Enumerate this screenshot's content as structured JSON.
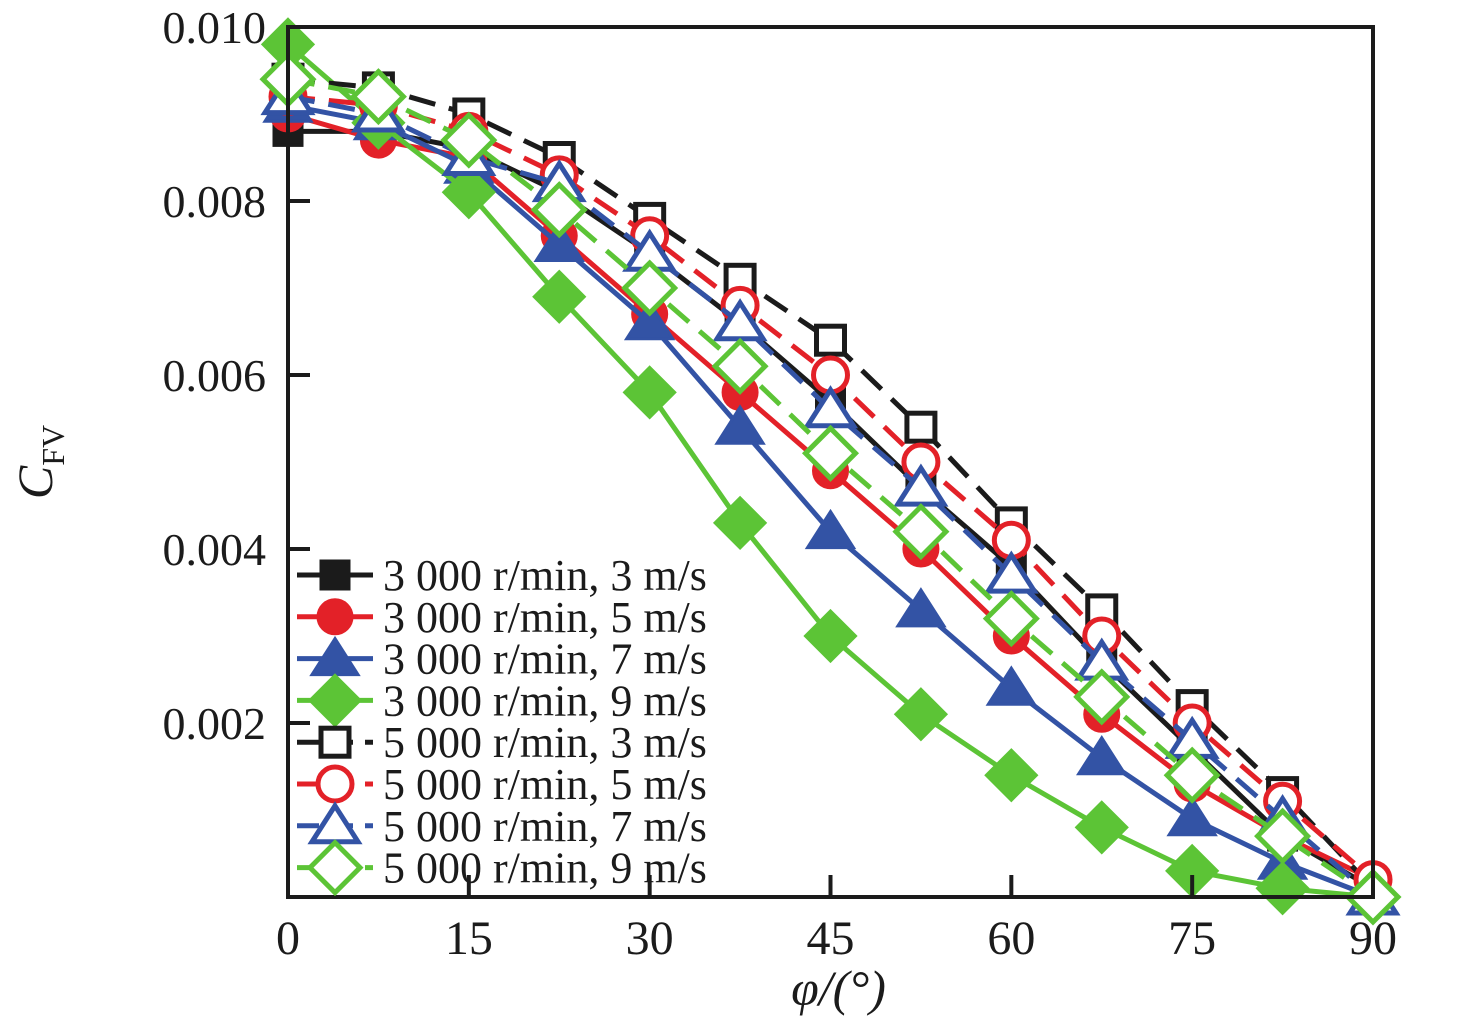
{
  "figure_title": "",
  "chart_data": {
    "type": "line",
    "title": "",
    "xlabel": "φ/(°)",
    "ylabel_main": "C",
    "ylabel_sub": "FV",
    "xlim": [
      0,
      90
    ],
    "ylim": [
      0,
      0.01
    ],
    "grid": false,
    "legend_position": "lower-left-inside",
    "x_tick_values": [
      0,
      15,
      30,
      45,
      60,
      75,
      90
    ],
    "x_tick_labels": [
      "0",
      "15",
      "30",
      "45",
      "60",
      "75",
      "90"
    ],
    "y_tick_values": [
      0.002,
      0.004,
      0.006,
      0.008,
      0.01
    ],
    "y_tick_labels": [
      "0.002",
      "0.004",
      "0.006",
      "0.008",
      "0.010"
    ],
    "x": [
      0,
      7.5,
      15,
      22.5,
      30,
      37.5,
      45,
      52.5,
      60,
      67.5,
      75,
      82.5,
      90
    ],
    "series": [
      {
        "label": "3 000 r/min, 3 m/s",
        "color": "#1b1b1b",
        "marker": "square",
        "filled": true,
        "line": "solid",
        "values": [
          0.0088,
          0.0088,
          0.0086,
          0.0081,
          0.0074,
          0.0066,
          0.0057,
          0.0047,
          0.0038,
          0.0027,
          0.0017,
          0.0007,
          0.0001
        ]
      },
      {
        "label": "3 000 r/min, 5 m/s",
        "color": "#e32128",
        "marker": "circle",
        "filled": true,
        "line": "solid",
        "values": [
          0.009,
          0.0087,
          0.0085,
          0.0076,
          0.0067,
          0.0058,
          0.0049,
          0.004,
          0.003,
          0.0021,
          0.0013,
          0.0007,
          0.0002
        ]
      },
      {
        "label": "3 000 r/min, 7 m/s",
        "color": "#3353a5",
        "marker": "triangle",
        "filled": true,
        "line": "solid",
        "values": [
          0.0091,
          0.0089,
          0.0084,
          0.0075,
          0.0066,
          0.0054,
          0.0042,
          0.0033,
          0.0024,
          0.0016,
          0.0009,
          0.0004,
          0.0
        ]
      },
      {
        "label": "3 000 r/min, 9 m/s",
        "color": "#5cc436",
        "marker": "diamond",
        "filled": true,
        "line": "solid",
        "values": [
          0.0098,
          0.0089,
          0.0081,
          0.0069,
          0.0058,
          0.0043,
          0.003,
          0.0021,
          0.0014,
          0.0008,
          0.0003,
          0.0001,
          0.0
        ]
      },
      {
        "label": "5 000 r/min, 3 m/s",
        "color": "#1b1b1b",
        "marker": "square",
        "filled": false,
        "line": "dashed",
        "values": [
          0.0094,
          0.0093,
          0.009,
          0.0085,
          0.0078,
          0.0071,
          0.0064,
          0.0054,
          0.0043,
          0.0033,
          0.0022,
          0.0012,
          0.0001
        ]
      },
      {
        "label": "5 000 r/min, 5 m/s",
        "color": "#e32128",
        "marker": "circle",
        "filled": false,
        "line": "dashed",
        "values": [
          0.0092,
          0.0091,
          0.0088,
          0.0083,
          0.0076,
          0.0068,
          0.006,
          0.005,
          0.0041,
          0.003,
          0.002,
          0.0011,
          0.0002
        ]
      },
      {
        "label": "5 000 r/min, 7 m/s",
        "color": "#3353a5",
        "marker": "triangle",
        "filled": false,
        "line": "dashed",
        "values": [
          0.0092,
          0.009,
          0.0085,
          0.0082,
          0.0074,
          0.0066,
          0.0056,
          0.0047,
          0.0037,
          0.0027,
          0.0018,
          0.0009,
          0.0
        ]
      },
      {
        "label": "5 000 r/min, 9 m/s",
        "color": "#5cc436",
        "marker": "diamond",
        "filled": false,
        "line": "dashed",
        "values": [
          0.0094,
          0.0092,
          0.0087,
          0.0079,
          0.007,
          0.0061,
          0.0051,
          0.0042,
          0.0032,
          0.0023,
          0.0014,
          0.0007,
          0.0
        ]
      }
    ]
  },
  "colors": {
    "axis": "#1b1b1b",
    "black_series": "#1b1b1b",
    "red_series": "#e32128",
    "blue_series": "#3353a5",
    "green_series": "#5cc436",
    "background": "#ffffff"
  }
}
